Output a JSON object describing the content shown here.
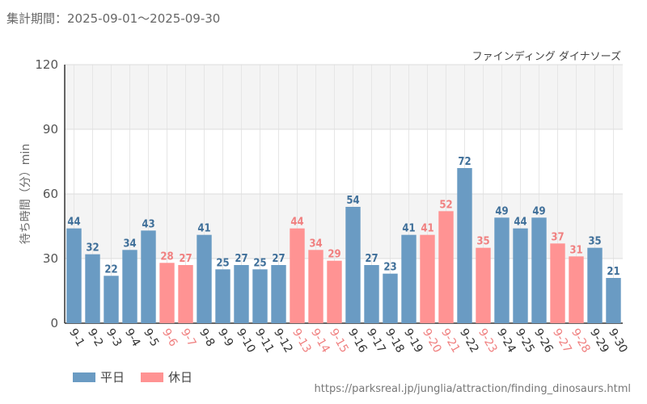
{
  "header": {
    "period": "集計期間：2025-09-01～2025-09-30"
  },
  "colors": {
    "weekday": "#6a9bc3",
    "holiday": "#ff9393",
    "holiday_label": "#f08080",
    "weekday_label": "#3f6f99"
  },
  "legend": {
    "weekday": "平日",
    "holiday": "休日"
  },
  "footer": {
    "source": "https://parksreal.jp/junglia/attraction/finding_dinosaurs.html"
  },
  "chart_data": {
    "type": "bar",
    "title": "ファインディング ダイナソーズ",
    "ylabel": "待ち時間（分）min",
    "xlabel": "",
    "ylim": [
      0,
      120
    ],
    "yticks": [
      0,
      30,
      60,
      90,
      120
    ],
    "categories": [
      "9-1",
      "9-2",
      "9-3",
      "9-4",
      "9-5",
      "9-6",
      "9-7",
      "9-8",
      "9-9",
      "9-10",
      "9-11",
      "9-12",
      "9-13",
      "9-14",
      "9-15",
      "9-16",
      "9-17",
      "9-18",
      "9-19",
      "9-20",
      "9-21",
      "9-22",
      "9-23",
      "9-24",
      "9-25",
      "9-26",
      "9-27",
      "9-28",
      "9-29",
      "9-30"
    ],
    "values": [
      44,
      32,
      22,
      34,
      43,
      28,
      27,
      41,
      25,
      27,
      25,
      27,
      44,
      34,
      29,
      54,
      27,
      23,
      41,
      41,
      52,
      72,
      35,
      49,
      44,
      49,
      37,
      31,
      35,
      21
    ],
    "day_type": [
      "weekday",
      "weekday",
      "weekday",
      "weekday",
      "weekday",
      "holiday",
      "holiday",
      "weekday",
      "weekday",
      "weekday",
      "weekday",
      "weekday",
      "holiday",
      "holiday",
      "holiday",
      "weekday",
      "weekday",
      "weekday",
      "weekday",
      "holiday",
      "holiday",
      "weekday",
      "holiday",
      "weekday",
      "weekday",
      "weekday",
      "holiday",
      "holiday",
      "weekday",
      "weekday"
    ]
  }
}
